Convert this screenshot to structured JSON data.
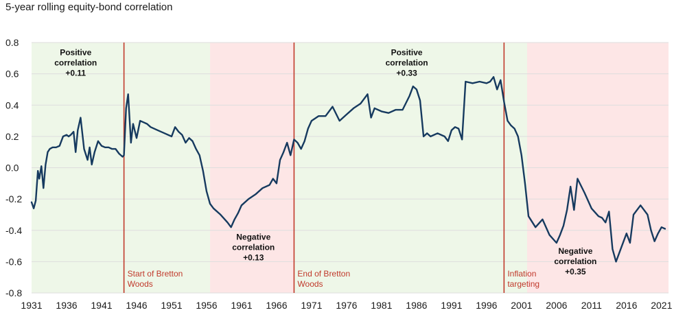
{
  "chart_data": {
    "type": "line",
    "title": "5-year rolling equity-bond correlation",
    "xlabel": "",
    "ylabel": "",
    "xlim": [
      1931,
      2022
    ],
    "ylim": [
      -0.8,
      0.8
    ],
    "yticks": [
      0.8,
      0.6,
      0.4,
      0.2,
      0.0,
      -0.2,
      -0.4,
      -0.6,
      -0.8
    ],
    "ytick_labels": [
      "0.8",
      "0.6",
      "0.4",
      "0.2",
      "0.0",
      "-0.2",
      "-0.4",
      "-0.6",
      "-0.8"
    ],
    "xticks": [
      1931,
      1936,
      1941,
      1946,
      1951,
      1956,
      1961,
      1966,
      1971,
      1976,
      1981,
      1986,
      1991,
      1996,
      2001,
      2006,
      2011,
      2016,
      2021
    ],
    "xtick_labels": [
      "1931",
      "1936",
      "1941",
      "1946",
      "1951",
      "1956",
      "1961",
      "1966",
      "1971",
      "1976",
      "1981",
      "1986",
      "1991",
      "1996",
      "2001",
      "2006",
      "2011",
      "2016",
      "2021"
    ],
    "colors": {
      "line": "#163a5f",
      "positive_shade": "#eef7e8",
      "negative_shade": "#fde6e6",
      "event_line": "#c0392b",
      "grid": "#dddddd"
    },
    "regimes": [
      {
        "start": 1931,
        "end": 1944.2,
        "sign": "positive"
      },
      {
        "start": 1944.2,
        "end": 1956.5,
        "sign": "positive"
      },
      {
        "start": 1956.5,
        "end": 1968.5,
        "sign": "negative"
      },
      {
        "start": 1968.5,
        "end": 1998.5,
        "sign": "positive"
      },
      {
        "start": 1998.5,
        "end": 2001.8,
        "sign": "positive"
      },
      {
        "start": 2001.8,
        "end": 2022,
        "sign": "negative"
      }
    ],
    "events": [
      {
        "x": 1944.2,
        "label_lines": [
          "Start of Bretton",
          "Woods"
        ]
      },
      {
        "x": 1968.5,
        "label_lines": [
          "End of Bretton",
          "Woods"
        ]
      },
      {
        "x": 1998.5,
        "label_lines": [
          "Inflation",
          "targeting"
        ]
      }
    ],
    "annotations": [
      {
        "x": 1937.3,
        "y": 0.72,
        "lines": [
          "Positive",
          "correlation",
          "+0.11"
        ]
      },
      {
        "x": 1962.7,
        "y": -0.46,
        "lines": [
          "Negative",
          "correlation",
          "+0.13"
        ]
      },
      {
        "x": 1984.6,
        "y": 0.72,
        "lines": [
          "Positive",
          "correlation",
          "+0.33"
        ]
      },
      {
        "x": 2008.7,
        "y": -0.55,
        "lines": [
          "Negative",
          "correlation",
          "+0.35"
        ]
      }
    ],
    "series": [
      {
        "name": "5-year rolling equity-bond correlation",
        "x": [
          1931.0,
          1931.3,
          1931.6,
          1931.9,
          1932.1,
          1932.4,
          1932.7,
          1933.0,
          1933.3,
          1933.6,
          1934.0,
          1934.5,
          1935.0,
          1935.5,
          1936.0,
          1936.3,
          1936.6,
          1937.0,
          1937.3,
          1937.6,
          1938.0,
          1938.5,
          1939.0,
          1939.3,
          1939.6,
          1940.0,
          1940.5,
          1941.0,
          1941.5,
          1942.0,
          1942.5,
          1943.0,
          1943.5,
          1944.0,
          1944.2,
          1944.5,
          1944.8,
          1945.2,
          1945.5,
          1946.0,
          1946.5,
          1947.0,
          1947.5,
          1948.0,
          1949.0,
          1950.0,
          1951.0,
          1951.5,
          1952.0,
          1952.5,
          1953.0,
          1953.5,
          1954.0,
          1954.5,
          1955.0,
          1955.5,
          1956.0,
          1956.5,
          1957.0,
          1958.0,
          1959.0,
          1959.5,
          1960.0,
          1960.5,
          1961.0,
          1962.0,
          1963.0,
          1964.0,
          1965.0,
          1965.5,
          1966.0,
          1966.5,
          1967.0,
          1967.5,
          1968.0,
          1968.5,
          1969.0,
          1969.5,
          1970.0,
          1970.5,
          1971.0,
          1972.0,
          1973.0,
          1974.0,
          1975.0,
          1976.0,
          1977.0,
          1978.0,
          1979.0,
          1979.5,
          1980.0,
          1981.0,
          1982.0,
          1983.0,
          1984.0,
          1985.0,
          1985.5,
          1986.0,
          1986.5,
          1987.0,
          1987.5,
          1988.0,
          1989.0,
          1990.0,
          1990.5,
          1991.0,
          1991.5,
          1992.0,
          1992.5,
          1993.0,
          1994.0,
          1995.0,
          1996.0,
          1996.5,
          1997.0,
          1997.5,
          1998.0,
          1998.5,
          1999.0,
          1999.5,
          2000.0,
          2000.5,
          2001.0,
          2001.5,
          2002.0,
          2003.0,
          2004.0,
          2005.0,
          2006.0,
          2006.5,
          2007.0,
          2007.5,
          2008.0,
          2008.5,
          2009.0,
          2010.0,
          2011.0,
          2012.0,
          2012.5,
          2013.0,
          2013.5,
          2014.0,
          2014.5,
          2015.0,
          2016.0,
          2016.5,
          2017.0,
          2018.0,
          2019.0,
          2019.5,
          2020.0,
          2020.5,
          2021.0,
          2021.5
        ],
        "values": [
          -0.22,
          -0.26,
          -0.21,
          -0.02,
          -0.07,
          0.01,
          -0.13,
          0.02,
          0.1,
          0.12,
          0.13,
          0.13,
          0.14,
          0.2,
          0.21,
          0.2,
          0.21,
          0.23,
          0.1,
          0.24,
          0.32,
          0.12,
          0.05,
          0.13,
          0.02,
          0.1,
          0.17,
          0.14,
          0.13,
          0.13,
          0.12,
          0.12,
          0.09,
          0.07,
          0.08,
          0.38,
          0.47,
          0.16,
          0.28,
          0.19,
          0.3,
          0.29,
          0.28,
          0.26,
          0.24,
          0.22,
          0.2,
          0.26,
          0.23,
          0.21,
          0.16,
          0.19,
          0.17,
          0.12,
          0.08,
          -0.02,
          -0.15,
          -0.23,
          -0.26,
          -0.3,
          -0.35,
          -0.38,
          -0.33,
          -0.29,
          -0.24,
          -0.2,
          -0.17,
          -0.13,
          -0.11,
          -0.07,
          -0.1,
          0.05,
          0.1,
          0.16,
          0.08,
          0.18,
          0.16,
          0.12,
          0.17,
          0.25,
          0.3,
          0.33,
          0.33,
          0.39,
          0.3,
          0.34,
          0.38,
          0.41,
          0.47,
          0.32,
          0.38,
          0.36,
          0.35,
          0.37,
          0.37,
          0.46,
          0.52,
          0.5,
          0.43,
          0.2,
          0.22,
          0.2,
          0.22,
          0.2,
          0.17,
          0.24,
          0.26,
          0.25,
          0.18,
          0.55,
          0.54,
          0.55,
          0.54,
          0.55,
          0.58,
          0.5,
          0.56,
          0.42,
          0.3,
          0.27,
          0.25,
          0.2,
          0.08,
          -0.1,
          -0.31,
          -0.38,
          -0.33,
          -0.43,
          -0.48,
          -0.43,
          -0.37,
          -0.27,
          -0.12,
          -0.27,
          -0.07,
          -0.16,
          -0.26,
          -0.31,
          -0.32,
          -0.35,
          -0.28,
          -0.52,
          -0.6,
          -0.54,
          -0.42,
          -0.48,
          -0.3,
          -0.24,
          -0.3,
          -0.4,
          -0.47,
          -0.42,
          -0.38,
          -0.39
        ]
      }
    ]
  }
}
